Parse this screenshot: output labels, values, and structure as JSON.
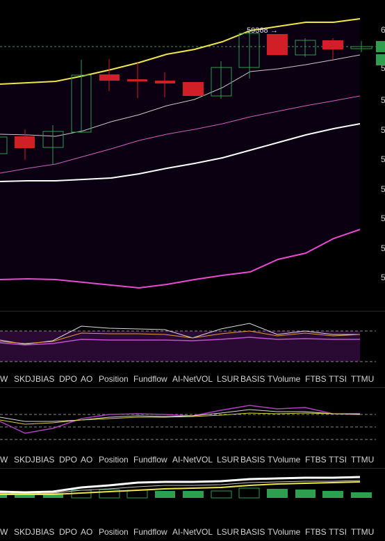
{
  "main_chart": {
    "price_label": "59368",
    "colors": {
      "up_candle": "#2e9e4f",
      "down_candle": "#d01f27",
      "upper_band": "#f0e54a",
      "lower_band": "#e84bd0",
      "mid_line": "#ffffff",
      "background": "#0b0012",
      "current_price_line": "#3a9e5a"
    }
  },
  "indicator_tabs_1": [
    "W",
    "SKDJ",
    "BIAS",
    "DPO",
    "AO",
    "Position",
    "Fundflow",
    "AI-NetVOL",
    "LSUR",
    "BASIS",
    "TVolume",
    "FTBS",
    "TTSI",
    "TTMU"
  ],
  "indicator_tabs_2": [
    "W",
    "SKDJ",
    "BIAS",
    "DPO",
    "AO",
    "Position",
    "Fundflow",
    "AI-NetVOL",
    "LSUR",
    "BASIS",
    "TVolume",
    "FTBS",
    "TTSI",
    "TTMU"
  ],
  "indicator_tabs_3": [
    "W",
    "SKDJ",
    "BIAS",
    "DPO",
    "AO",
    "Position",
    "Fundflow",
    "AI-NetVOL",
    "LSUR",
    "BASIS",
    "TVolume",
    "FTBS",
    "TTSI",
    "TTMU"
  ]
}
